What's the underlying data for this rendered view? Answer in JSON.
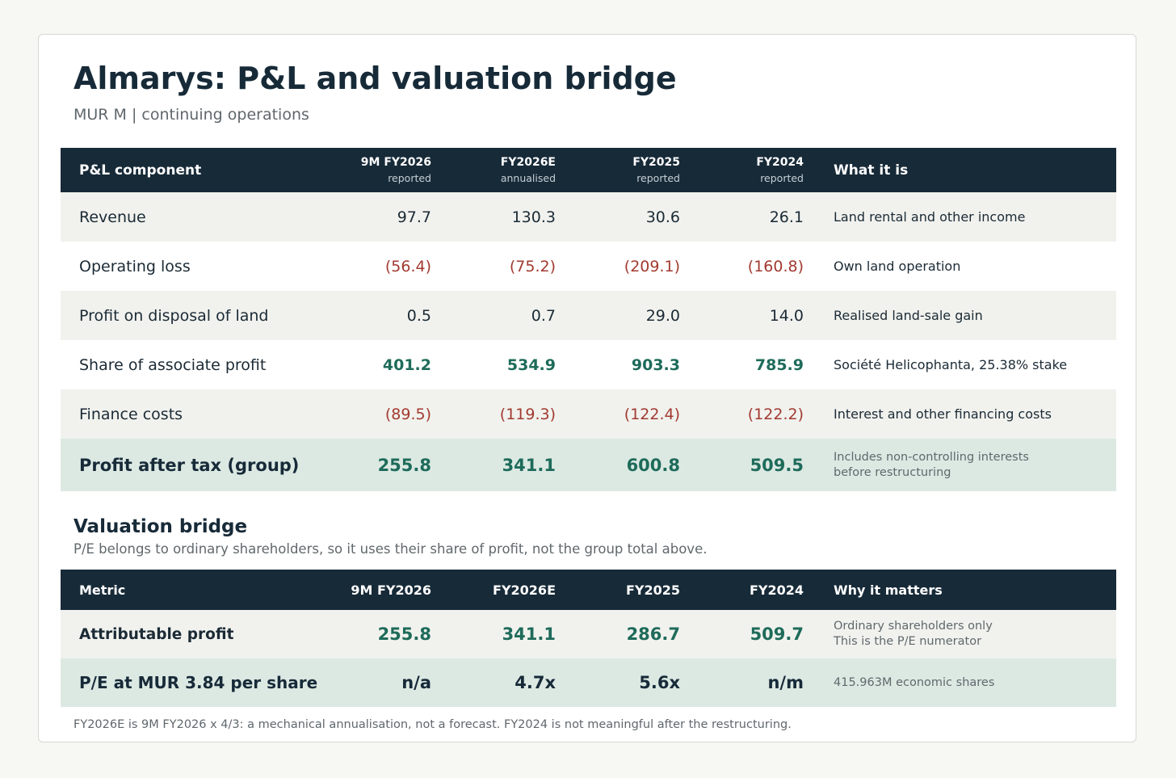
{
  "title": "Almarys: P&L and valuation bridge",
  "subtitle": "MUR M | continuing operations",
  "pl_table": {
    "headers": {
      "component": "P&L component",
      "periods": [
        {
          "label": "9M FY2026",
          "sub": "reported"
        },
        {
          "label": "FY2026E",
          "sub": "annualised"
        },
        {
          "label": "FY2025",
          "sub": "reported"
        },
        {
          "label": "FY2024",
          "sub": "reported"
        }
      ],
      "description": "What it is"
    },
    "rows": [
      {
        "label": "Revenue",
        "values": [
          "97.7",
          "130.3",
          "30.6",
          "26.1"
        ],
        "description": "Land rental and other income"
      },
      {
        "label": "Operating loss",
        "values": [
          "(56.4)",
          "(75.2)",
          "(209.1)",
          "(160.8)"
        ],
        "description": "Own land operation"
      },
      {
        "label": "Profit on disposal of land",
        "values": [
          "0.5",
          "0.7",
          "29.0",
          "14.0"
        ],
        "description": "Realised land-sale gain"
      },
      {
        "label": "Share of associate profit",
        "values": [
          "401.2",
          "534.9",
          "903.3",
          "785.9"
        ],
        "description": "Société Helicophanta, 25.38% stake"
      },
      {
        "label": "Finance costs",
        "values": [
          "(89.5)",
          "(119.3)",
          "(122.4)",
          "(122.2)"
        ],
        "description": "Interest and other financing costs"
      },
      {
        "label": "Profit after tax (group)",
        "values": [
          "255.8",
          "341.1",
          "600.8",
          "509.5"
        ],
        "description_lines": [
          "Includes non-controlling interests",
          "before restructuring"
        ]
      }
    ]
  },
  "valuation": {
    "title": "Valuation bridge",
    "note": "P/E belongs to ordinary shareholders, so it uses their share of profit, not the group total above.",
    "headers": {
      "metric": "Metric",
      "periods": [
        "9M FY2026",
        "FY2026E",
        "FY2025",
        "FY2024"
      ],
      "description": "Why it matters"
    },
    "rows": [
      {
        "label": "Attributable profit",
        "values": [
          "255.8",
          "341.1",
          "286.7",
          "509.7"
        ],
        "description_lines": [
          "Ordinary shareholders only",
          "This is the P/E numerator"
        ]
      },
      {
        "label": "P/E at MUR 3.84 per share",
        "values": [
          "n/a",
          "4.7x",
          "5.6x",
          "n/m"
        ],
        "description": "415.963M economic shares"
      }
    ]
  },
  "footnote": "FY2026E is 9M FY2026 x 4/3: a mechanical annualisation, not a forecast. FY2024 is not meaningful after the restructuring.",
  "colors": {
    "header_bg": "#172a38",
    "positive": "#1e6b5a",
    "negative": "#a23a30",
    "highlight_row": "#dce9e3",
    "shaded_row": "#f1f2ee"
  }
}
